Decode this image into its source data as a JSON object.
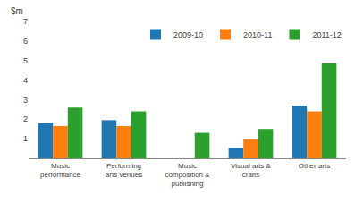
{
  "chart_data": {
    "type": "bar",
    "categories": [
      "Music\nperformance",
      "Performing\narts venues",
      "Music\ncomposition &\npublishing",
      "Visual arts &\ncrafts",
      "Other arts"
    ],
    "series": [
      {
        "name": "2009-10",
        "values": [
          1.8,
          1.95,
          0.0,
          0.55,
          2.7
        ]
      },
      {
        "name": "2010-11",
        "values": [
          1.65,
          1.65,
          0.0,
          1.0,
          2.4
        ]
      },
      {
        "name": "2011-12",
        "values": [
          2.6,
          2.4,
          1.3,
          1.5,
          4.85
        ]
      }
    ],
    "ylabel": "$m",
    "ylim": [
      0,
      7
    ],
    "yticks": [
      1,
      2,
      3,
      4,
      5,
      6,
      7
    ],
    "grid": false,
    "legend": "upper right"
  }
}
